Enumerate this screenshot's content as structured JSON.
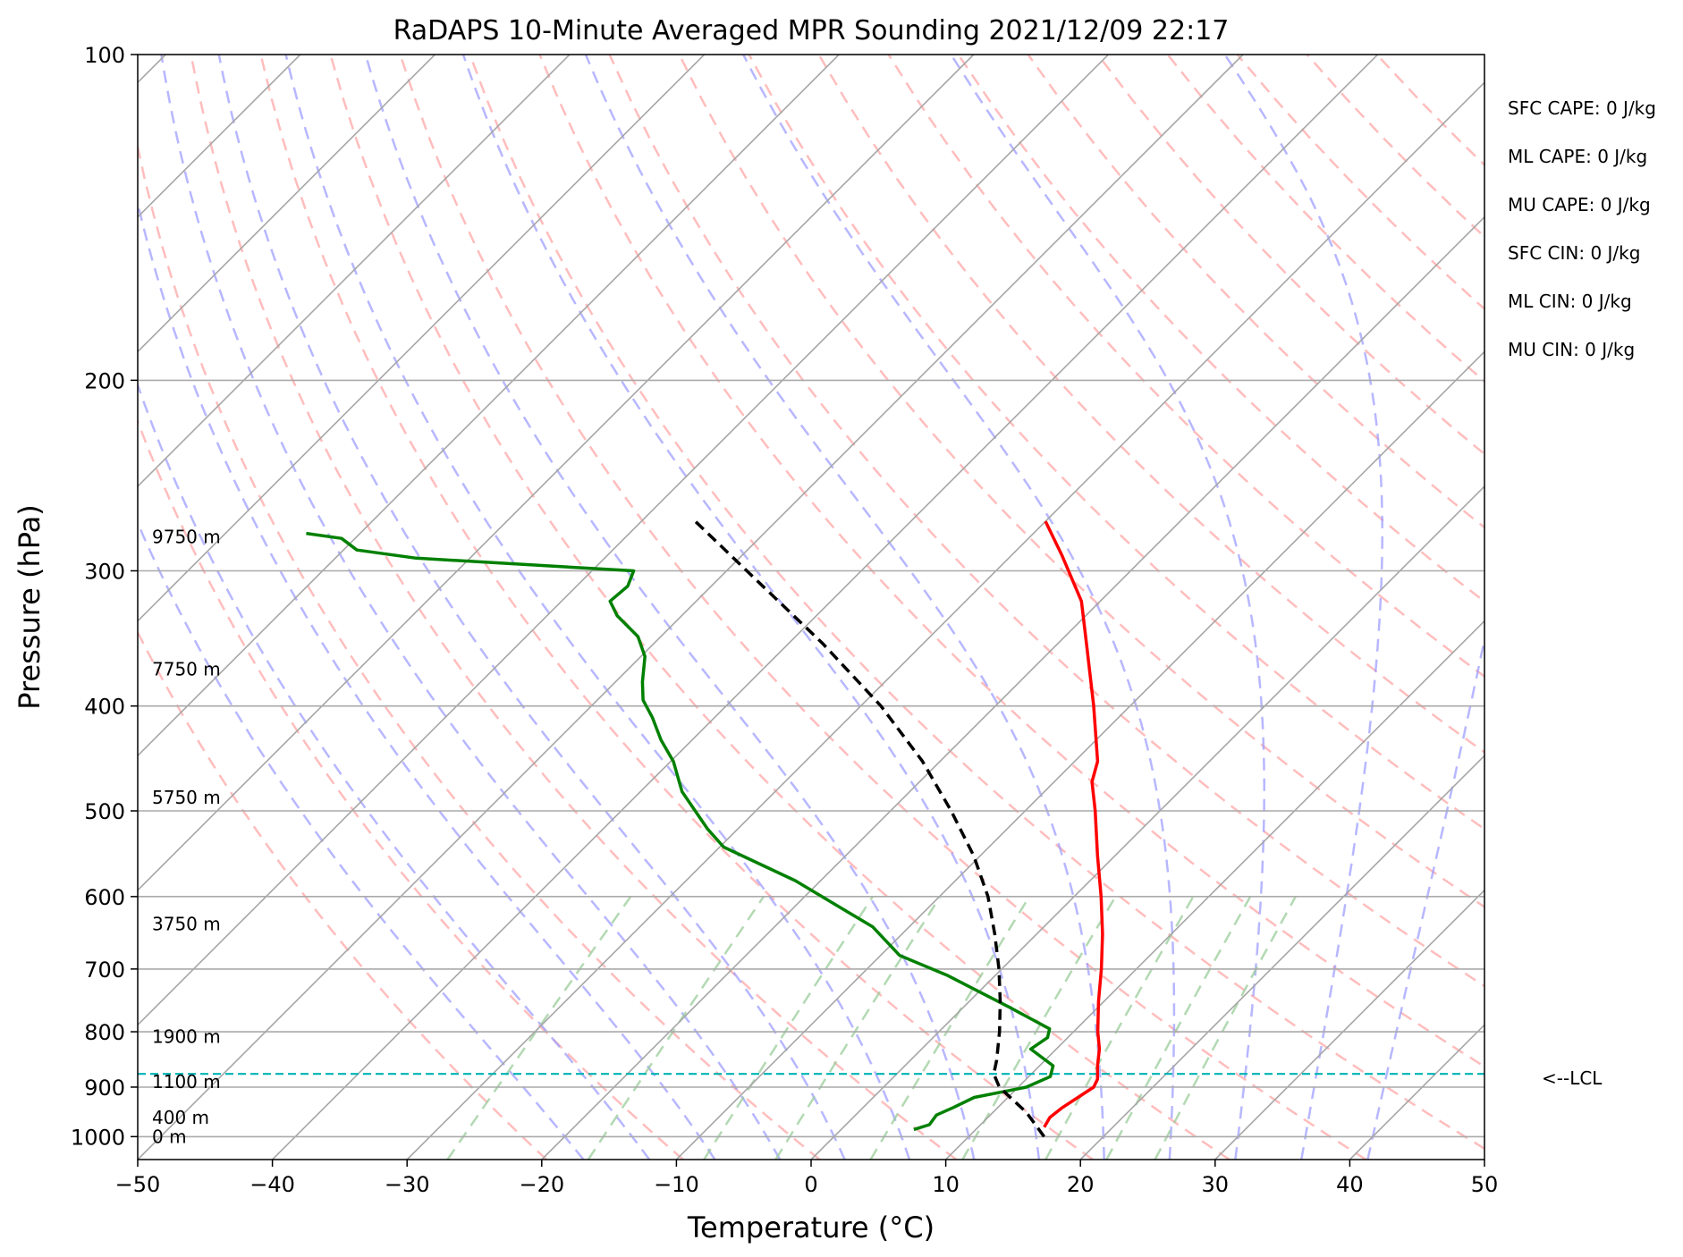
{
  "chart_data": {
    "type": "line",
    "title": "RaDAPS 10-Minute Averaged MPR Sounding 2021/12/09 22:17",
    "xlabel": "Temperature (°C)",
    "ylabel": "Pressure (hPa)",
    "xlim": [
      -50,
      50
    ],
    "ylim": [
      1050,
      100
    ],
    "y_scale": "log",
    "skew": "skew-T",
    "grid": true,
    "x_ticks": [
      -50,
      -40,
      -30,
      -20,
      -10,
      0,
      10,
      20,
      30,
      40,
      50
    ],
    "x_tick_labels": [
      "−50",
      "−40",
      "−30",
      "−20",
      "−10",
      "0",
      "10",
      "20",
      "30",
      "40",
      "50"
    ],
    "y_ticks": [
      1000,
      900,
      800,
      700,
      600,
      500,
      400,
      300,
      200,
      100
    ],
    "y_tick_labels": [
      "1000",
      "900",
      "800",
      "700",
      "600",
      "500",
      "400",
      "300",
      "200",
      "100"
    ],
    "series": [
      {
        "role": "temperature",
        "color": "#ff0000",
        "points": [
          {
            "p": 980,
            "t": 14.9
          },
          {
            "p": 960,
            "t": 14.6
          },
          {
            "p": 940,
            "t": 14.8
          },
          {
            "p": 920,
            "t": 15.2
          },
          {
            "p": 900,
            "t": 15.6
          },
          {
            "p": 885,
            "t": 15.3
          },
          {
            "p": 860,
            "t": 14.3
          },
          {
            "p": 830,
            "t": 13.2
          },
          {
            "p": 800,
            "t": 11.8
          },
          {
            "p": 750,
            "t": 9.6
          },
          {
            "p": 700,
            "t": 7.4
          },
          {
            "p": 650,
            "t": 4.9
          },
          {
            "p": 600,
            "t": 2.0
          },
          {
            "p": 550,
            "t": -1.3
          },
          {
            "p": 500,
            "t": -4.8
          },
          {
            "p": 470,
            "t": -7.2
          },
          {
            "p": 450,
            "t": -8.3
          },
          {
            "p": 400,
            "t": -12.7
          },
          {
            "p": 350,
            "t": -17.9
          },
          {
            "p": 320,
            "t": -21.4
          },
          {
            "p": 290,
            "t": -26.3
          },
          {
            "p": 270,
            "t": -30.0
          }
        ]
      },
      {
        "role": "dewpoint",
        "color": "#008000",
        "points": [
          {
            "p": 985,
            "t": 5.4
          },
          {
            "p": 975,
            "t": 6.2
          },
          {
            "p": 955,
            "t": 6.0
          },
          {
            "p": 940,
            "t": 6.7
          },
          {
            "p": 920,
            "t": 7.5
          },
          {
            "p": 900,
            "t": 10.6
          },
          {
            "p": 880,
            "t": 11.6
          },
          {
            "p": 860,
            "t": 11.0
          },
          {
            "p": 830,
            "t": 8.1
          },
          {
            "p": 810,
            "t": 8.5
          },
          {
            "p": 795,
            "t": 8.0
          },
          {
            "p": 760,
            "t": 3.5
          },
          {
            "p": 710,
            "t": -3.5
          },
          {
            "p": 680,
            "t": -8.6
          },
          {
            "p": 640,
            "t": -12.7
          },
          {
            "p": 580,
            "t": -21.9
          },
          {
            "p": 540,
            "t": -29.7
          },
          {
            "p": 520,
            "t": -32.2
          },
          {
            "p": 480,
            "t": -36.9
          },
          {
            "p": 450,
            "t": -39.8
          },
          {
            "p": 430,
            "t": -42.3
          },
          {
            "p": 410,
            "t": -44.6
          },
          {
            "p": 395,
            "t": -46.6
          },
          {
            "p": 380,
            "t": -48.0
          },
          {
            "p": 360,
            "t": -49.7
          },
          {
            "p": 345,
            "t": -51.7
          },
          {
            "p": 330,
            "t": -54.8
          },
          {
            "p": 320,
            "t": -56.4
          },
          {
            "p": 310,
            "t": -56.2
          },
          {
            "p": 300,
            "t": -56.9
          },
          {
            "p": 292,
            "t": -74.0
          },
          {
            "p": 287,
            "t": -79.0
          },
          {
            "p": 280,
            "t": -81.0
          },
          {
            "p": 277,
            "t": -84.0
          }
        ]
      },
      {
        "role": "parcel",
        "color": "#000000",
        "dashed": true,
        "points": [
          {
            "p": 1000,
            "t": 15.6
          },
          {
            "p": 950,
            "t": 12.5
          },
          {
            "p": 900,
            "t": 8.6
          },
          {
            "p": 875,
            "t": 7.2
          },
          {
            "p": 850,
            "t": 6.4
          },
          {
            "p": 800,
            "t": 4.5
          },
          {
            "p": 750,
            "t": 2.3
          },
          {
            "p": 700,
            "t": -0.2
          },
          {
            "p": 650,
            "t": -3.1
          },
          {
            "p": 600,
            "t": -6.4
          },
          {
            "p": 550,
            "t": -10.5
          },
          {
            "p": 500,
            "t": -15.5
          },
          {
            "p": 450,
            "t": -21.3
          },
          {
            "p": 400,
            "t": -28.5
          },
          {
            "p": 350,
            "t": -37.5
          },
          {
            "p": 300,
            "t": -48.5
          },
          {
            "p": 270,
            "t": -56.0
          }
        ]
      }
    ],
    "lcl": {
      "p": 875,
      "label": "<--LCL",
      "color": "#00b3b3"
    },
    "height_labels": [
      {
        "p": 1000,
        "label": "0 m"
      },
      {
        "p": 960,
        "label": "400 m"
      },
      {
        "p": 890,
        "label": "1100 m"
      },
      {
        "p": 808,
        "label": "1900 m"
      },
      {
        "p": 636,
        "label": "3750 m"
      },
      {
        "p": 486,
        "label": "5750 m"
      },
      {
        "p": 370,
        "label": "7750 m"
      },
      {
        "p": 279,
        "label": "9750 m"
      }
    ],
    "indices": [
      {
        "label": "SFC CAPE: 0 J/kg"
      },
      {
        "label": "ML CAPE: 0 J/kg"
      },
      {
        "label": "MU CAPE: 0 J/kg"
      },
      {
        "label": "SFC CIN: 0 J/kg"
      },
      {
        "label": "ML CIN: 0 J/kg"
      },
      {
        "label": "MU CIN: 0 J/kg"
      }
    ],
    "colors": {
      "isotherms": "#a6a6a6",
      "dry_adiabats": "#ff9999",
      "moist_adiabats": "#9999ff",
      "mixing_ratio": "#99cc99",
      "isobars": "#aaaaaa"
    }
  }
}
